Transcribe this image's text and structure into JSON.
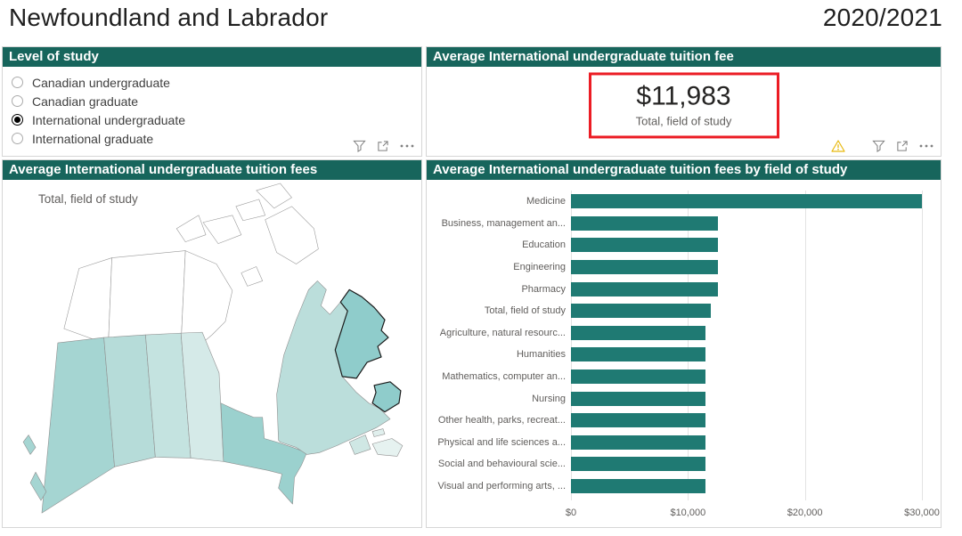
{
  "page": {
    "title": "Newfoundland and Labrador",
    "year": "2020/2021"
  },
  "colors": {
    "panel_header_teal": "#17655C",
    "bar_teal": "#1F7A73",
    "kpi_highlight_red": "#EC1C24",
    "warning_yellow": "#E8B90F",
    "axis_text_gray": "#605E5C"
  },
  "icons": {
    "filter": "funnel-icon",
    "focus_mode": "focus-mode-icon",
    "more_options": "more-options-icon",
    "warning": "warning-icon",
    "radio_selected": "radio-selected-icon",
    "radio_unselected": "radio-unselected-icon"
  },
  "panels": {
    "level_of_study": {
      "title": "Level of study",
      "options": [
        {
          "label": "Canadian undergraduate",
          "selected": false
        },
        {
          "label": "Canadian graduate",
          "selected": false
        },
        {
          "label": "International undergraduate",
          "selected": true
        },
        {
          "label": "International graduate",
          "selected": false
        }
      ]
    },
    "tuition_card": {
      "title": "Average International undergraduate tuition fee",
      "value": "$11,983",
      "label": "Total, field of study"
    },
    "map": {
      "title": "Average International undergraduate tuition fees",
      "annotation": "Total, field of study",
      "highlighted_region": "Newfoundland and Labrador",
      "region_fills": {
        "yukon": "#FFFFFF",
        "northwest_territories": "#FFFFFF",
        "nunavut": "#FFFFFF",
        "british_columbia": "#A5D5D2",
        "alberta": "#B6DCD9",
        "saskatchewan": "#C4E3E0",
        "manitoba": "#D5EAE8",
        "ontario": "#9BD1CE",
        "quebec": "#BBDEDB",
        "newfoundland_labrador": "#8FCCCB",
        "new_brunswick": "#CFE7E4",
        "prince_edward_island": "#E0EFED",
        "nova_scotia": "#E6F2F0"
      }
    },
    "field_chart": {
      "title": "Average International undergraduate tuition fees by field of study"
    }
  },
  "chart_data": {
    "type": "bar",
    "orientation": "horizontal",
    "title": "Average International undergraduate tuition fees by field of study",
    "xlabel": "",
    "ylabel": "",
    "categories": [
      "Medicine",
      "Business, management an...",
      "Education",
      "Engineering",
      "Pharmacy",
      "Total, field of study",
      "Agriculture, natural resourc...",
      "Humanities",
      "Mathematics, computer an...",
      "Nursing",
      "Other health, parks, recreat...",
      "Physical and life sciences a...",
      "Social and behavioural scie...",
      "Visual and performing arts, ..."
    ],
    "values": [
      30000,
      12580,
      12580,
      12580,
      12580,
      11983,
      11460,
      11460,
      11460,
      11460,
      11460,
      11460,
      11460,
      11460
    ],
    "xlim": [
      0,
      30000
    ],
    "x_ticks": [
      {
        "label": "$0",
        "value": 0
      },
      {
        "label": "$10,000",
        "value": 10000
      },
      {
        "label": "$20,000",
        "value": 20000
      },
      {
        "label": "$30,000",
        "value": 30000
      }
    ],
    "grid": true,
    "bar_color": "#1F7A73",
    "legend": "none"
  }
}
